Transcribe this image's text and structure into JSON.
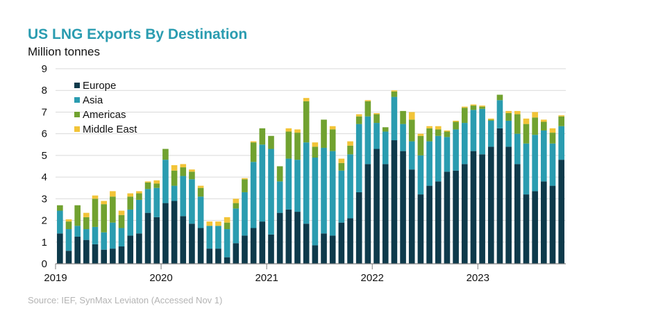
{
  "title": "US LNG Exports By Destination",
  "unit_label": "Million tonnes",
  "source": "Source: IEF, SynMax Leviaton (Accessed Nov 1)",
  "chart_data": {
    "type": "bar",
    "stacked": true,
    "title": "US LNG Exports By Destination",
    "ylabel": "Million tonnes",
    "ylim": [
      0,
      9
    ],
    "yticks": [
      0,
      1,
      2,
      3,
      4,
      5,
      6,
      7,
      8,
      9
    ],
    "xtick_labels": [
      "2019",
      "2020",
      "2021",
      "2022",
      "2023"
    ],
    "xtick_positions": [
      0,
      12,
      24,
      36,
      48
    ],
    "grid": true,
    "legend_position": "top-left",
    "categories": [
      "2019-01",
      "2019-02",
      "2019-03",
      "2019-04",
      "2019-05",
      "2019-06",
      "2019-07",
      "2019-08",
      "2019-09",
      "2019-10",
      "2019-11",
      "2019-12",
      "2020-01",
      "2020-02",
      "2020-03",
      "2020-04",
      "2020-05",
      "2020-06",
      "2020-07",
      "2020-08",
      "2020-09",
      "2020-10",
      "2020-11",
      "2020-12",
      "2021-01",
      "2021-02",
      "2021-03",
      "2021-04",
      "2021-05",
      "2021-06",
      "2021-07",
      "2021-08",
      "2021-09",
      "2021-10",
      "2021-11",
      "2021-12",
      "2022-01",
      "2022-02",
      "2022-03",
      "2022-04",
      "2022-05",
      "2022-06",
      "2022-07",
      "2022-08",
      "2022-09",
      "2022-10",
      "2022-11",
      "2022-12",
      "2023-01",
      "2023-02",
      "2023-03",
      "2023-04",
      "2023-05",
      "2023-06",
      "2023-07",
      "2023-08",
      "2023-09",
      "2023-10"
    ],
    "series": [
      {
        "name": "Europe",
        "color": "#0E3A4B",
        "values": [
          1.4,
          0.6,
          1.25,
          1.1,
          0.9,
          0.65,
          0.7,
          0.8,
          1.3,
          1.4,
          2.35,
          2.15,
          2.8,
          2.9,
          2.2,
          1.85,
          1.65,
          0.7,
          0.7,
          0.3,
          0.95,
          1.3,
          1.65,
          1.95,
          1.35,
          2.35,
          2.5,
          2.4,
          1.85,
          0.85,
          1.4,
          1.3,
          1.9,
          2.1,
          3.3,
          4.6,
          5.3,
          4.6,
          5.7,
          5.2,
          4.35,
          3.2,
          3.6,
          3.8,
          4.25,
          4.3,
          4.6,
          5.2,
          5.05,
          5.4,
          6.25,
          5.4,
          4.6,
          3.2,
          3.35,
          3.8,
          3.6,
          4.8
        ]
      },
      {
        "name": "Asia",
        "color": "#2A9CB0",
        "values": [
          1.05,
          1.0,
          0.5,
          0.5,
          0.8,
          0.8,
          1.2,
          0.85,
          1.2,
          1.55,
          1.1,
          1.35,
          2.0,
          0.7,
          1.85,
          2.05,
          1.45,
          1.05,
          1.05,
          1.3,
          1.6,
          2.0,
          3.05,
          3.55,
          3.95,
          1.45,
          2.35,
          2.4,
          3.75,
          4.05,
          3.95,
          3.9,
          2.4,
          2.95,
          3.15,
          2.2,
          1.2,
          1.5,
          2.0,
          1.25,
          1.3,
          1.8,
          2.05,
          2.1,
          1.6,
          1.9,
          1.9,
          1.9,
          2.1,
          1.2,
          1.3,
          1.2,
          1.4,
          2.35,
          2.6,
          2.35,
          1.95,
          1.55
        ]
      },
      {
        "name": "Americas",
        "color": "#71A230",
        "values": [
          0.25,
          0.35,
          0.95,
          0.55,
          1.3,
          1.3,
          1.2,
          0.6,
          0.6,
          0.3,
          0.3,
          0.2,
          0.5,
          0.7,
          0.4,
          0.35,
          0.4,
          0.0,
          0.0,
          0.3,
          0.25,
          0.6,
          0.9,
          0.75,
          0.6,
          0.7,
          1.25,
          1.25,
          1.9,
          0.5,
          1.3,
          1.0,
          0.35,
          0.4,
          0.35,
          0.7,
          0.4,
          0.2,
          0.25,
          0.6,
          1.0,
          0.9,
          0.6,
          0.3,
          0.25,
          0.35,
          0.7,
          0.2,
          0.1,
          0.05,
          0.25,
          0.35,
          0.9,
          0.9,
          0.8,
          0.4,
          0.5,
          0.45
        ]
      },
      {
        "name": "Middle East",
        "color": "#F2C438",
        "values": [
          0.0,
          0.1,
          0.0,
          0.2,
          0.15,
          0.15,
          0.25,
          0.2,
          0.15,
          0.1,
          0.05,
          0.15,
          0.0,
          0.25,
          0.15,
          0.1,
          0.1,
          0.2,
          0.2,
          0.25,
          0.2,
          0.05,
          0.05,
          0.0,
          0.0,
          0.0,
          0.15,
          0.15,
          0.15,
          0.2,
          0.0,
          0.15,
          0.2,
          0.2,
          0.1,
          0.05,
          0.05,
          0.0,
          0.05,
          0.0,
          0.35,
          0.1,
          0.1,
          0.15,
          0.05,
          0.05,
          0.05,
          0.05,
          0.05,
          0.05,
          0.0,
          0.1,
          0.15,
          0.25,
          0.25,
          0.1,
          0.2,
          0.05
        ]
      }
    ]
  }
}
